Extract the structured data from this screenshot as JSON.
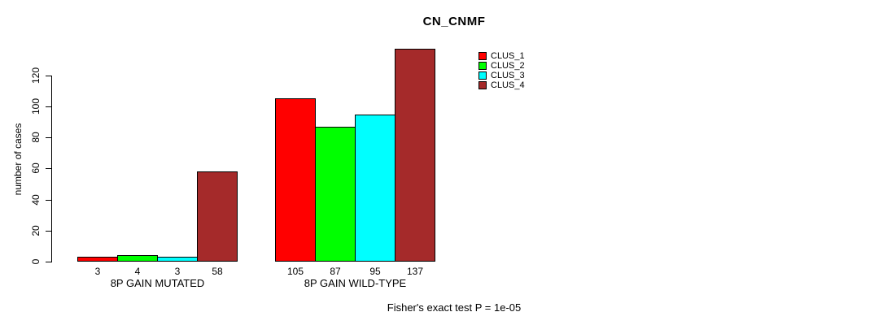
{
  "chart_data": {
    "type": "bar",
    "title": "CN_CNMF",
    "xlabel": "",
    "ylabel": "number of cases",
    "categories": [
      "8P GAIN MUTATED",
      "8P GAIN WILD-TYPE"
    ],
    "series": [
      {
        "name": "CLUS_1",
        "color": "#ff0000",
        "values": [
          3,
          105
        ]
      },
      {
        "name": "CLUS_2",
        "color": "#00ff00",
        "values": [
          4,
          87
        ]
      },
      {
        "name": "CLUS_3",
        "color": "#00ffff",
        "values": [
          3,
          95
        ]
      },
      {
        "name": "CLUS_4",
        "color": "#a52a2a",
        "values": [
          58,
          137
        ]
      }
    ],
    "bar_value_labels": [
      [
        3,
        4,
        3,
        58
      ],
      [
        105,
        87,
        95,
        137
      ]
    ],
    "yticks": [
      0,
      20,
      40,
      60,
      80,
      100,
      120
    ],
    "ylim": [
      0,
      137
    ],
    "grid": false,
    "legend_position": "top-right",
    "legend_entries": [
      "CLUS_1",
      "CLUS_2",
      "CLUS_3",
      "CLUS_4"
    ],
    "annotation": "Fisher's exact test P = 1e-05"
  }
}
